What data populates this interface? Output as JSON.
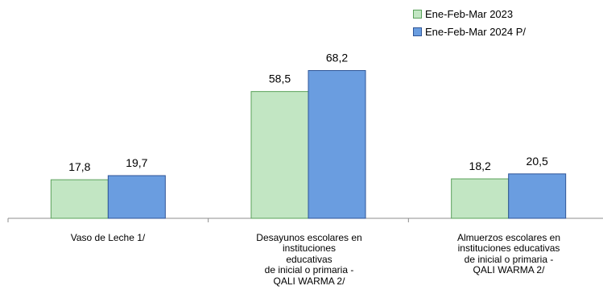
{
  "chart_data": {
    "type": "bar",
    "categories": [
      "Vaso de Leche 1/",
      "Desayunos escolares en instituciones\neducativas\nde inicial o primaria -\nQALI WARMA 2/",
      "Almuerzos escolares en\ninstituciones educativas\nde inicial o primaria -\nQALI WARMA 2/"
    ],
    "series": [
      {
        "name": "Ene-Feb-Mar 2023",
        "values": [
          17.8,
          58.5,
          18.2
        ],
        "labels": [
          "17,8",
          "58,5",
          "18,2"
        ],
        "color": "#c2e6c3",
        "stroke": "#5aa15a"
      },
      {
        "name": "Ene-Feb-Mar 2024 P/",
        "values": [
          19.7,
          68.2,
          20.5
        ],
        "labels": [
          "19,7",
          "68,2",
          "20,5"
        ],
        "color": "#6a9de0",
        "stroke": "#2f5597"
      }
    ],
    "ylim": [
      0,
      80
    ],
    "grid": false,
    "legend": "top-right",
    "title": "",
    "xlabel": "",
    "ylabel": ""
  }
}
